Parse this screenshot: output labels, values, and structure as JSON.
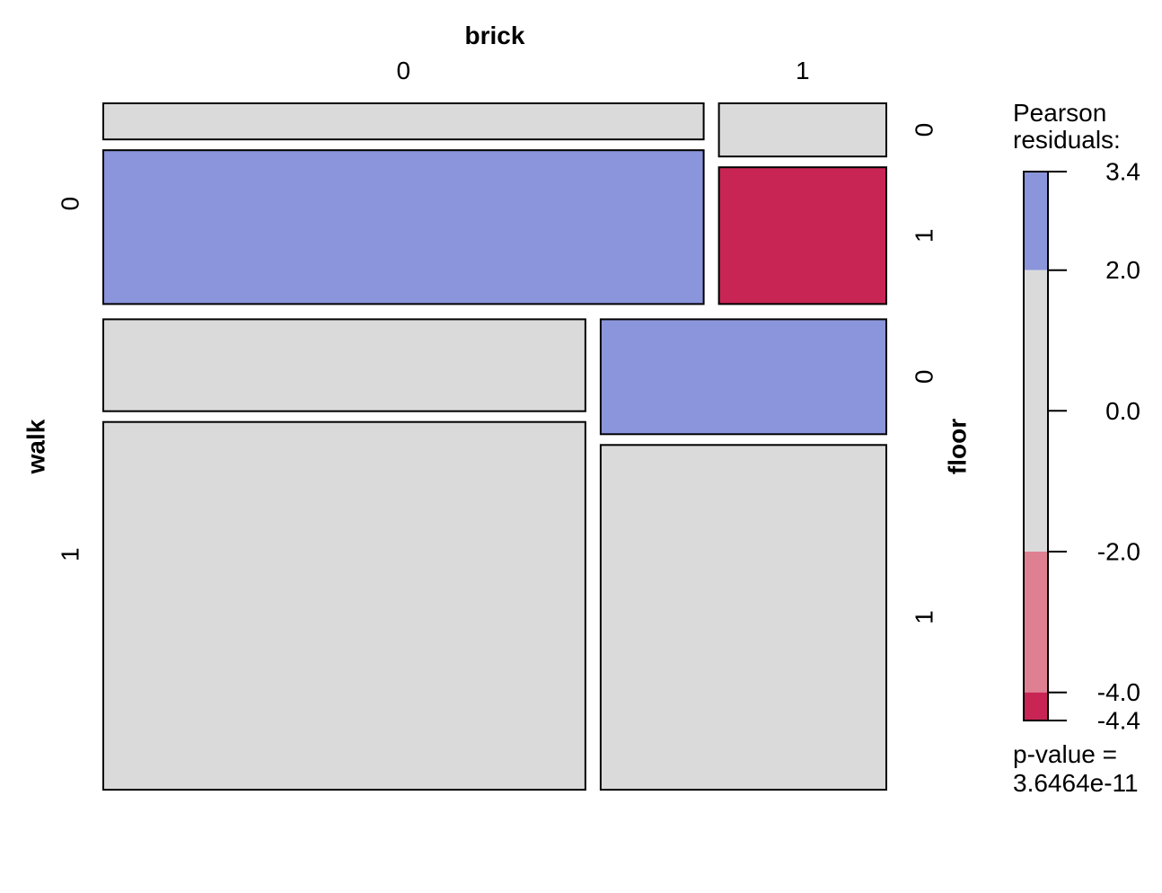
{
  "chart_data": {
    "type": "mosaic",
    "variables": {
      "top": {
        "name": "brick",
        "levels": [
          "0",
          "1"
        ]
      },
      "left": {
        "name": "walk",
        "levels": [
          "0",
          "1"
        ]
      },
      "right": {
        "name": "floor",
        "levels": [
          "0",
          "1"
        ]
      }
    },
    "cells": [
      {
        "walk": "0",
        "brick": "0",
        "floor": "0",
        "proportion_of_walk_brick": 0.19,
        "residual_band": "neutral"
      },
      {
        "walk": "0",
        "brick": "0",
        "floor": "1",
        "proportion_of_walk_brick": 0.81,
        "residual_band": "positive_high"
      },
      {
        "walk": "0",
        "brick": "1",
        "floor": "0",
        "proportion_of_walk_brick": 0.28,
        "residual_band": "neutral"
      },
      {
        "walk": "0",
        "brick": "1",
        "floor": "1",
        "proportion_of_walk_brick": 0.72,
        "residual_band": "negative_extreme"
      },
      {
        "walk": "1",
        "brick": "0",
        "floor": "0",
        "proportion_of_walk_brick": 0.2,
        "residual_band": "neutral"
      },
      {
        "walk": "1",
        "brick": "0",
        "floor": "1",
        "proportion_of_walk_brick": 0.8,
        "residual_band": "neutral"
      },
      {
        "walk": "1",
        "brick": "1",
        "floor": "0",
        "proportion_of_walk_brick": 0.25,
        "residual_band": "positive_high"
      },
      {
        "walk": "1",
        "brick": "1",
        "floor": "1",
        "proportion_of_walk_brick": 0.75,
        "residual_band": "neutral"
      }
    ],
    "marginals": {
      "walk": {
        "0": 0.299,
        "1": 0.701
      },
      "brick_within_walk": {
        "0": {
          "0": 0.782,
          "1": 0.218
        },
        "1": {
          "0": 0.628,
          "1": 0.372
        }
      }
    },
    "legend": {
      "title": "Pearson\nresiduals:",
      "breaks": [
        3.4,
        2.0,
        0.0,
        -2.0,
        -4.0,
        -4.4
      ],
      "break_labels": [
        "3.4",
        "2.0",
        "0.0",
        "-2.0",
        "-4.0",
        "-4.4"
      ],
      "bands": [
        {
          "from": 2.0,
          "to": 3.4,
          "color": "#8B95DC"
        },
        {
          "from": -2.0,
          "to": 2.0,
          "color": "#DADADA"
        },
        {
          "from": -4.0,
          "to": -2.0,
          "color": "#DE8091"
        },
        {
          "from": -4.4,
          "to": -4.0,
          "color": "#C82555"
        }
      ],
      "p_value_label": "p-value =",
      "p_value": "3.6464e-11"
    },
    "colors": {
      "neutral": "#DADADA",
      "positive_high": "#8B95DC",
      "negative_mid": "#DE8091",
      "negative_extreme": "#C82555",
      "border": "#000000"
    }
  }
}
